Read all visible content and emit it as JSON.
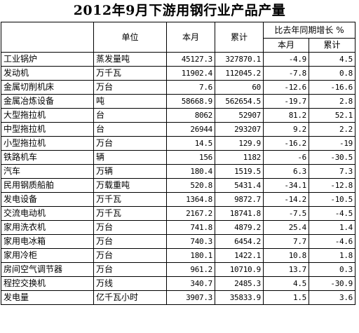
{
  "title": "2012年9月下游用钢行业产品产量",
  "headers": {
    "blank": "",
    "unit": "单位",
    "month": "本月",
    "cumulative": "累计",
    "yoy": "比去年同期增长 %",
    "yoy_month": "本月",
    "yoy_cumulative": "累计"
  },
  "rows": [
    {
      "name": "工业锅炉",
      "unit": "蒸发量吨",
      "month": "45127.3",
      "cumulative": "327870.1",
      "yoy_month": "-4.9",
      "yoy_cumulative": "4.5"
    },
    {
      "name": "发动机",
      "unit": "万千瓦",
      "month": "11902.4",
      "cumulative": "112045.2",
      "yoy_month": "-7.8",
      "yoy_cumulative": "0.8"
    },
    {
      "name": "金属切削机床",
      "unit": "万台",
      "month": "7.6",
      "cumulative": "60",
      "yoy_month": "-12.6",
      "yoy_cumulative": "-16.6"
    },
    {
      "name": "金属冶炼设备",
      "unit": "吨",
      "month": "58668.9",
      "cumulative": "562654.5",
      "yoy_month": "-19.7",
      "yoy_cumulative": "2.8"
    },
    {
      "name": "大型拖拉机",
      "unit": "台",
      "month": "8062",
      "cumulative": "52907",
      "yoy_month": "81.2",
      "yoy_cumulative": "52.1"
    },
    {
      "name": "中型拖拉机",
      "unit": "台",
      "month": "26944",
      "cumulative": "293207",
      "yoy_month": "9.2",
      "yoy_cumulative": "2.2"
    },
    {
      "name": "小型拖拉机",
      "unit": "万台",
      "month": "14.5",
      "cumulative": "129.9",
      "yoy_month": "-16.2",
      "yoy_cumulative": "-19"
    },
    {
      "name": "铁路机车",
      "unit": "辆",
      "month": "156",
      "cumulative": "1182",
      "yoy_month": "-6",
      "yoy_cumulative": "-30.5"
    },
    {
      "name": "汽车",
      "unit": "万辆",
      "month": "180.4",
      "cumulative": "1519.5",
      "yoy_month": "6.3",
      "yoy_cumulative": "7.3"
    },
    {
      "name": "民用钢质船舶",
      "unit": "万载重吨",
      "month": "520.8",
      "cumulative": "5431.4",
      "yoy_month": "-34.1",
      "yoy_cumulative": "-12.8"
    },
    {
      "name": "发电设备",
      "unit": "万千瓦",
      "month": "1364.8",
      "cumulative": "9872.7",
      "yoy_month": "-14.2",
      "yoy_cumulative": "-10.5"
    },
    {
      "name": "交流电动机",
      "unit": "万千瓦",
      "month": "2167.2",
      "cumulative": "18741.8",
      "yoy_month": "-7.5",
      "yoy_cumulative": "-4.5"
    },
    {
      "name": "家用洗衣机",
      "unit": "万台",
      "month": "741.8",
      "cumulative": "4879.2",
      "yoy_month": "25.4",
      "yoy_cumulative": "1.4"
    },
    {
      "name": "家用电冰箱",
      "unit": "万台",
      "month": "740.3",
      "cumulative": "6454.2",
      "yoy_month": "7.7",
      "yoy_cumulative": "-4.6"
    },
    {
      "name": "家用冷柜",
      "unit": "万台",
      "month": "180.1",
      "cumulative": "1422.1",
      "yoy_month": "10.8",
      "yoy_cumulative": "1.8"
    },
    {
      "name": "房间空气调节器",
      "unit": "万台",
      "month": "961.2",
      "cumulative": "10710.9",
      "yoy_month": "13.7",
      "yoy_cumulative": "0.3"
    },
    {
      "name": "程控交换机",
      "unit": "万线",
      "month": "340.7",
      "cumulative": "2485.3",
      "yoy_month": "4.5",
      "yoy_cumulative": "-30.9"
    },
    {
      "name": "发电量",
      "unit": "亿千瓦小时",
      "month": "3907.3",
      "cumulative": "35833.9",
      "yoy_month": "1.5",
      "yoy_cumulative": "3.6"
    }
  ]
}
